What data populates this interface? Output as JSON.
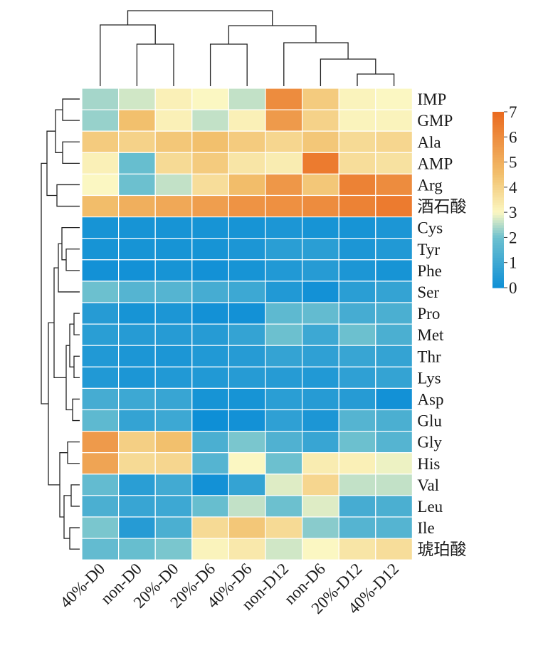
{
  "chart_data": {
    "type": "heatmap",
    "title": "",
    "xlabel": "",
    "ylabel": "",
    "columns": [
      "40%-D0",
      "non-D0",
      "20%-D0",
      "20%-D6",
      "40%-D6",
      "non-D12",
      "non-D6",
      "20%-D12",
      "40%-D12"
    ],
    "rows": [
      "IMP",
      "GMP",
      "Ala",
      "AMP",
      "Arg",
      "酒石酸",
      "Cys",
      "Tyr",
      "Phe",
      "Ser",
      "Pro",
      "Met",
      "Thr",
      "Lys",
      "Asp",
      "Glu",
      "Gly",
      "His",
      "Val",
      "Leu",
      "Ile",
      "琥珀酸"
    ],
    "values": [
      [
        2.4,
        2.7,
        3.2,
        3.0,
        2.6,
        6.0,
        4.2,
        3.1,
        3.0
      ],
      [
        2.3,
        4.5,
        3.2,
        2.6,
        3.2,
        5.6,
        4.0,
        3.1,
        3.1
      ],
      [
        4.2,
        4.0,
        4.3,
        4.5,
        4.2,
        3.9,
        4.3,
        3.8,
        3.9
      ],
      [
        3.2,
        1.9,
        3.8,
        4.2,
        3.5,
        3.3,
        6.5,
        3.7,
        3.6
      ],
      [
        3.0,
        2.0,
        2.6,
        3.7,
        4.6,
        5.7,
        4.3,
        6.3,
        6.0
      ],
      [
        4.6,
        5.0,
        5.2,
        5.5,
        5.8,
        5.9,
        6.0,
        6.3,
        6.5
      ],
      [
        0.2,
        0.2,
        0.2,
        0.2,
        0.2,
        0.3,
        0.2,
        0.2,
        0.3
      ],
      [
        0.2,
        0.2,
        0.2,
        0.2,
        0.3,
        0.6,
        0.6,
        0.3,
        0.4
      ],
      [
        0.1,
        0.1,
        0.2,
        0.1,
        0.2,
        0.4,
        0.5,
        0.3,
        0.2
      ],
      [
        2.0,
        1.5,
        1.5,
        1.2,
        1.0,
        0.4,
        0.1,
        0.6,
        0.8
      ],
      [
        0.5,
        0.2,
        0.3,
        0.1,
        0.1,
        1.7,
        1.8,
        1.2,
        1.3
      ],
      [
        0.6,
        0.5,
        0.5,
        0.5,
        0.8,
        2.0,
        1.0,
        2.0,
        1.3
      ],
      [
        0.4,
        0.3,
        0.3,
        0.4,
        0.5,
        0.8,
        0.7,
        0.9,
        0.8
      ],
      [
        0.4,
        0.3,
        0.4,
        0.4,
        0.5,
        0.5,
        0.4,
        0.7,
        0.8
      ],
      [
        1.2,
        1.0,
        0.9,
        0.2,
        0.2,
        0.6,
        0.5,
        0.5,
        0.1
      ],
      [
        1.7,
        0.8,
        1.0,
        0.0,
        0.1,
        0.7,
        0.3,
        1.5,
        1.3
      ],
      [
        5.6,
        4.1,
        4.5,
        1.3,
        2.1,
        1.4,
        0.9,
        2.0,
        1.5
      ],
      [
        5.3,
        3.8,
        3.9,
        1.5,
        3.0,
        2.0,
        3.3,
        3.2,
        2.9
      ],
      [
        1.8,
        0.6,
        1.1,
        0.1,
        0.8,
        2.8,
        3.9,
        2.6,
        2.6
      ],
      [
        1.3,
        0.9,
        1.0,
        1.9,
        2.6,
        2.0,
        2.8,
        1.2,
        1.3
      ],
      [
        2.1,
        0.5,
        1.3,
        3.8,
        4.3,
        3.8,
        2.2,
        1.5,
        1.5
      ],
      [
        1.8,
        1.9,
        2.1,
        3.1,
        3.4,
        2.7,
        3.0,
        3.5,
        3.7
      ]
    ],
    "colorbar": {
      "min": 0,
      "max": 7,
      "ticks": [
        "0",
        "1",
        "2",
        "3",
        "4",
        "5",
        "6",
        "7"
      ]
    },
    "colors": {
      "low": "#0e8fd6",
      "low_mid": "#6cc0cf",
      "mid": "#fbf7c2",
      "high_mid": "#f2c06d",
      "high": "#ea6a1f",
      "grid_line": "#ffffff",
      "dendrogram": "#222222"
    },
    "column_dendrogram": true,
    "row_dendrogram": true,
    "legend_position": "right"
  }
}
